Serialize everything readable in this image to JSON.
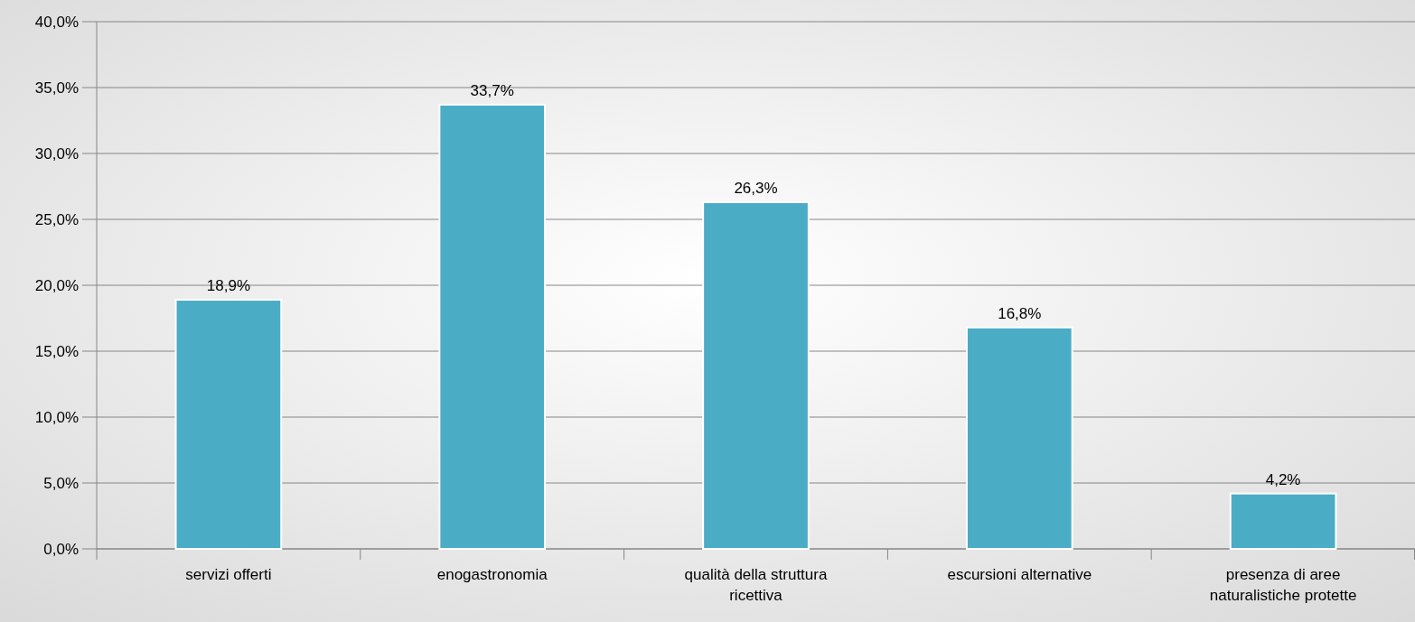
{
  "chart_data": {
    "type": "bar",
    "categories": [
      "servizi offerti",
      "enogastronomia",
      "qualità della struttura ricettiva",
      "escursioni alternative",
      "presenza di aree naturalistiche protette"
    ],
    "values": [
      18.9,
      33.7,
      26.3,
      16.8,
      4.2
    ],
    "color": "#4bacc6",
    "value_labels": [
      "18,9%",
      "33,7%",
      "26,3%",
      "16,8%",
      "4,2%"
    ],
    "ylim": [
      0,
      40
    ],
    "yticks": [
      {
        "value": 0,
        "label": "0,0%"
      },
      {
        "value": 5,
        "label": "5,0%"
      },
      {
        "value": 10,
        "label": "10,0%"
      },
      {
        "value": 15,
        "label": "15,0%"
      },
      {
        "value": 20,
        "label": "20,0%"
      },
      {
        "value": 25,
        "label": "25,0%"
      },
      {
        "value": 30,
        "label": "30,0%"
      },
      {
        "value": 35,
        "label": "35,0%"
      },
      {
        "value": 40,
        "label": "40,0%"
      }
    ],
    "grid": "y"
  }
}
